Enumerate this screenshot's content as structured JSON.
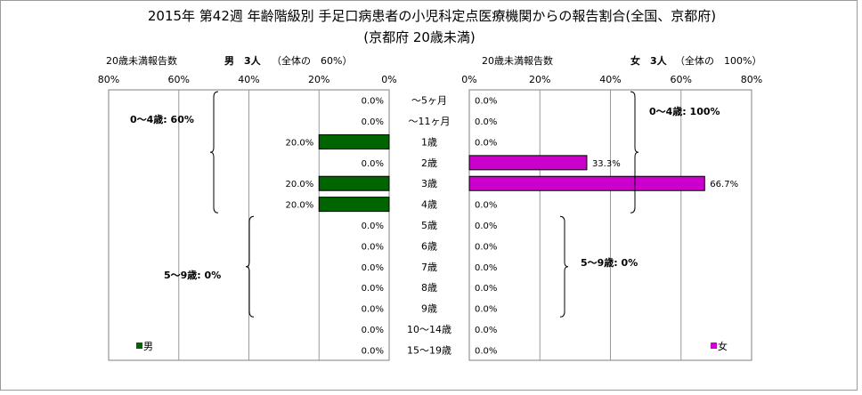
{
  "chart_data": {
    "type": "bar",
    "title": "2015年 第42週 年齢階級別 手足口病患者の小児科定点医療機関からの報告割合(全国、京都府)",
    "subtitle": "(京都府 20歳未満)",
    "categories": [
      "～5ヶ月",
      "～11ヶ月",
      "1歳",
      "2歳",
      "3歳",
      "4歳",
      "5歳",
      "6歳",
      "7歳",
      "8歳",
      "9歳",
      "10～14歳",
      "15～19歳"
    ],
    "xlim": [
      0,
      80
    ],
    "ticks": [
      "80%",
      "60%",
      "40%",
      "20%",
      "0%"
    ],
    "ticks_female": [
      "0%",
      "20%",
      "40%",
      "60%",
      "80%"
    ],
    "series": [
      {
        "name": "男",
        "color": "#006400",
        "header_label": "20歳未満報告数",
        "header_count": "男　3人",
        "header_ratio": "（全体の　60%）",
        "values": [
          0,
          0,
          20,
          0,
          20,
          20,
          0,
          0,
          0,
          0,
          0,
          0,
          0
        ],
        "labels": [
          "0.0%",
          "0.0%",
          "20.0%",
          "0.0%",
          "20.0%",
          "20.0%",
          "0.0%",
          "0.0%",
          "0.0%",
          "0.0%",
          "0.0%",
          "0.0%",
          "0.0%"
        ]
      },
      {
        "name": "女",
        "color": "#cc00cc",
        "header_label": "20歳未満報告数",
        "header_count": "女　3人",
        "header_ratio": "（全体の　100%）",
        "values": [
          0,
          0,
          0,
          33.3,
          66.7,
          0,
          0,
          0,
          0,
          0,
          0,
          0,
          0
        ],
        "labels": [
          "0.0%",
          "0.0%",
          "0.0%",
          "33.3%",
          "66.7%",
          "0.0%",
          "0.0%",
          "0.0%",
          "0.0%",
          "0.0%",
          "0.0%",
          "0.0%",
          "0.0%"
        ]
      }
    ],
    "annotations": {
      "male_0_4": "0～4歳: 60%",
      "male_5_9": "5～9歳: 0%",
      "female_0_4": "0～4歳: 100%",
      "female_5_9": "5～9歳: 0%"
    },
    "grid": true,
    "legend": "bottom"
  }
}
